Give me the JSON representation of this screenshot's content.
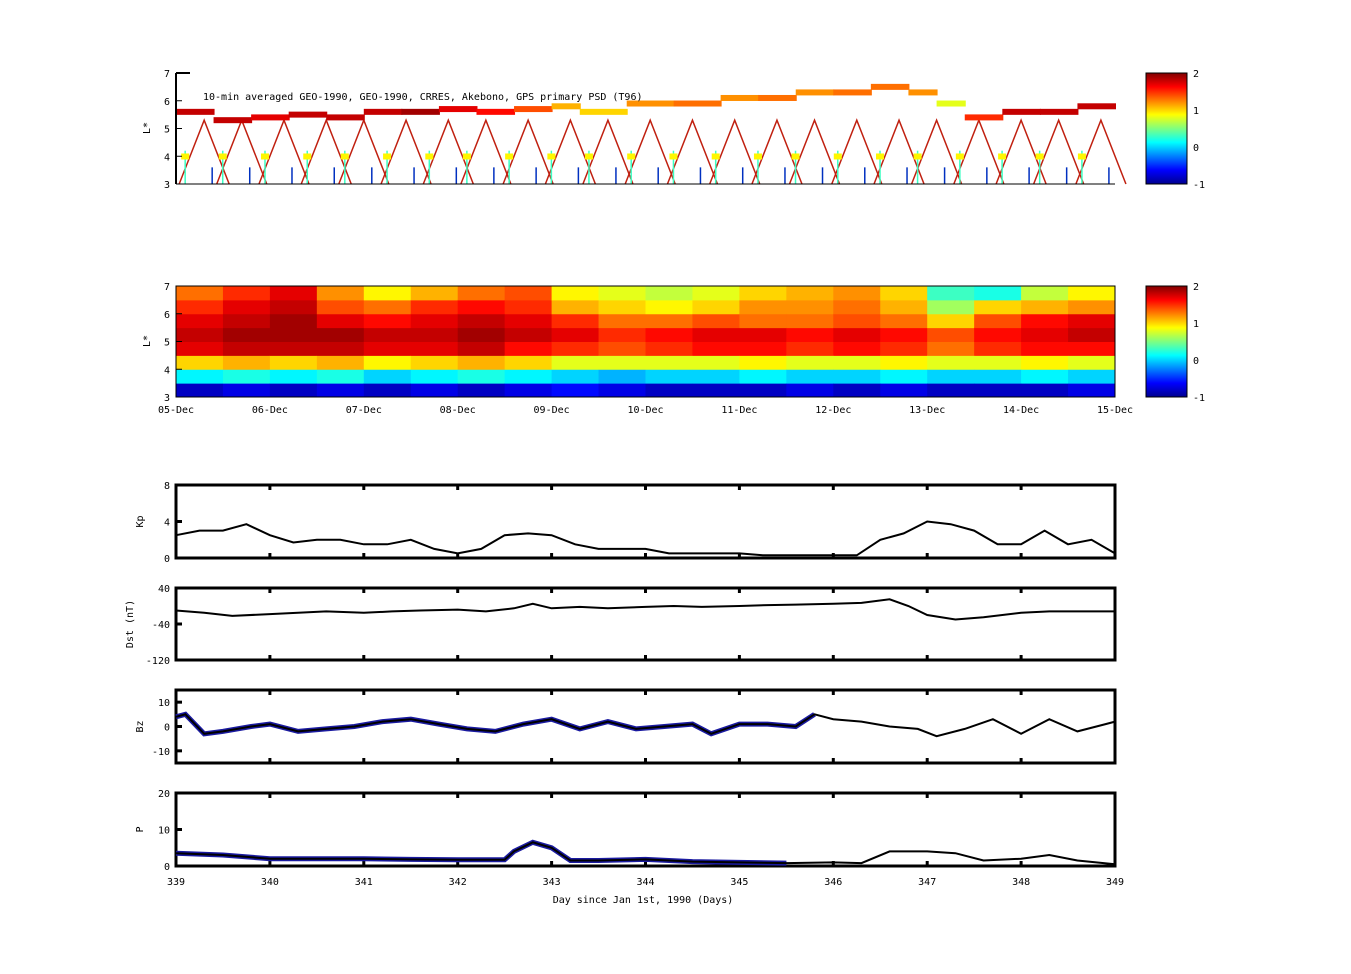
{
  "chart_data": [
    {
      "type": "heatmap",
      "name": "psd-observations",
      "title": "10-min averaged GEO-1990, GEO-1990, CRRES, Akebono, GPS  primary PSD (T96)",
      "ylabel": "L*",
      "ylim": [
        3,
        7
      ],
      "yticks": [
        "3",
        "4",
        "5",
        "6",
        "7"
      ],
      "xlim": [
        339,
        349
      ],
      "colorbar": {
        "ticks": [
          "-1",
          "0",
          "1",
          "2"
        ],
        "range": [
          -1,
          2
        ]
      },
      "geo_track": [
        [
          339,
          5.6,
          1.8
        ],
        [
          339.4,
          5.3,
          1.8
        ],
        [
          339.8,
          5.4,
          1.7
        ],
        [
          340.2,
          5.5,
          1.8
        ],
        [
          340.6,
          5.4,
          1.8
        ],
        [
          341,
          5.6,
          1.8
        ],
        [
          341.4,
          5.6,
          1.9
        ],
        [
          341.8,
          5.7,
          1.7
        ],
        [
          342.2,
          5.6,
          1.6
        ],
        [
          342.6,
          5.7,
          1.4
        ],
        [
          343,
          5.8,
          1.1
        ],
        [
          343.3,
          5.6,
          1.0
        ],
        [
          343.8,
          5.9,
          1.2
        ],
        [
          344.3,
          5.9,
          1.3
        ],
        [
          344.8,
          6.1,
          1.2
        ],
        [
          345.2,
          6.1,
          1.3
        ],
        [
          345.6,
          6.3,
          1.2
        ],
        [
          346,
          6.3,
          1.3
        ],
        [
          346.4,
          6.5,
          1.3
        ],
        [
          346.8,
          6.3,
          1.2
        ],
        [
          347.1,
          5.9,
          0.8
        ],
        [
          347.4,
          5.4,
          1.5
        ],
        [
          347.8,
          5.6,
          1.8
        ],
        [
          348.2,
          5.6,
          1.8
        ],
        [
          348.6,
          5.8,
          1.8
        ],
        [
          349,
          5.6,
          1.8
        ]
      ],
      "crres_arc_peaks": [
        339.3,
        339.7,
        340.15,
        340.6,
        341.0,
        341.45,
        341.9,
        342.3,
        342.75,
        343.2,
        343.6,
        344.05,
        344.5,
        344.95,
        345.4,
        345.8,
        346.25,
        346.7,
        347.1,
        347.55,
        348.0,
        348.4,
        348.85
      ]
    },
    {
      "type": "heatmap",
      "name": "psd-reanalysis",
      "ylabel": "L*",
      "ylim": [
        3,
        7
      ],
      "yticks": [
        "3",
        "4",
        "5",
        "6",
        "7"
      ],
      "xticks": [
        "05-Dec",
        "06-Dec",
        "07-Dec",
        "08-Dec",
        "09-Dec",
        "10-Dec",
        "11-Dec",
        "12-Dec",
        "13-Dec",
        "14-Dec",
        "15-Dec"
      ],
      "colorbar": {
        "ticks": [
          "-1",
          "0",
          "1",
          "2"
        ],
        "range": [
          -1,
          2
        ]
      },
      "l_bins": [
        3.25,
        3.75,
        4.25,
        4.75,
        5.25,
        5.75,
        6.25,
        6.75
      ],
      "day_bins": [
        339,
        339.5,
        340,
        340.5,
        341,
        341.5,
        342,
        342.5,
        343,
        343.5,
        344,
        344.5,
        345,
        345.5,
        346,
        346.5,
        347,
        347.5,
        348,
        348.5
      ],
      "values": [
        [
          -0.8,
          -0.7,
          -0.8,
          -0.7,
          -0.8,
          -0.7,
          -0.8,
          -0.7,
          -0.6,
          -0.7,
          -0.8,
          -0.8,
          -0.8,
          -0.7,
          -0.8,
          -0.7,
          -0.8,
          -0.8,
          -0.8,
          -0.7
        ],
        [
          0.1,
          0.2,
          0.1,
          0.2,
          0.0,
          0.1,
          0.2,
          0.1,
          0.0,
          -0.1,
          0.0,
          0.0,
          0.1,
          0.0,
          0.0,
          0.1,
          0.0,
          0.0,
          0.1,
          0.0
        ],
        [
          1.0,
          1.1,
          1.0,
          1.1,
          0.9,
          1.0,
          1.1,
          1.0,
          0.8,
          0.8,
          0.8,
          0.8,
          0.9,
          0.8,
          0.8,
          0.9,
          0.8,
          0.8,
          0.9,
          0.8
        ],
        [
          1.7,
          1.8,
          1.8,
          1.8,
          1.7,
          1.7,
          1.8,
          1.6,
          1.5,
          1.4,
          1.5,
          1.6,
          1.6,
          1.5,
          1.6,
          1.5,
          1.3,
          1.5,
          1.6,
          1.6
        ],
        [
          1.8,
          1.9,
          1.9,
          1.9,
          1.8,
          1.8,
          1.9,
          1.8,
          1.7,
          1.5,
          1.6,
          1.7,
          1.7,
          1.6,
          1.7,
          1.6,
          1.4,
          1.6,
          1.7,
          1.8
        ],
        [
          1.7,
          1.8,
          1.9,
          1.7,
          1.6,
          1.7,
          1.8,
          1.7,
          1.5,
          1.3,
          1.3,
          1.4,
          1.3,
          1.3,
          1.4,
          1.3,
          1.0,
          1.4,
          1.6,
          1.7
        ],
        [
          1.5,
          1.7,
          1.8,
          1.4,
          1.3,
          1.5,
          1.6,
          1.5,
          1.1,
          1.0,
          0.9,
          1.0,
          1.2,
          1.2,
          1.3,
          1.1,
          0.6,
          1.0,
          1.1,
          1.2
        ],
        [
          1.3,
          1.5,
          1.7,
          1.2,
          0.9,
          1.1,
          1.3,
          1.4,
          0.9,
          0.8,
          0.7,
          0.8,
          1.0,
          1.1,
          1.2,
          1.0,
          0.3,
          0.2,
          0.7,
          0.9
        ]
      ]
    },
    {
      "type": "line",
      "name": "kp",
      "ylabel": "Kp",
      "ylim": [
        0,
        8
      ],
      "yticks": [
        "0",
        "4",
        "8"
      ],
      "x": [
        339,
        339.25,
        339.5,
        339.75,
        340,
        340.25,
        340.5,
        340.75,
        341,
        341.25,
        341.5,
        341.75,
        342,
        342.25,
        342.5,
        342.75,
        343,
        343.25,
        343.5,
        343.75,
        344,
        344.25,
        344.5,
        344.75,
        345,
        345.25,
        345.5,
        345.75,
        346,
        346.25,
        346.5,
        346.75,
        347,
        347.25,
        347.5,
        347.75,
        348,
        348.25,
        348.5,
        348.75,
        349
      ],
      "y": [
        2.5,
        3,
        3,
        3.7,
        2.5,
        1.7,
        2,
        2,
        1.5,
        1.5,
        2,
        1,
        0.5,
        1,
        2.5,
        2.7,
        2.5,
        1.5,
        1,
        1,
        1,
        0.5,
        0.5,
        0.5,
        0.5,
        0.3,
        0.3,
        0.3,
        0.3,
        0.3,
        2,
        2.7,
        4,
        3.7,
        3,
        1.5,
        1.5,
        3,
        1.5,
        2,
        0.5
      ]
    },
    {
      "type": "line",
      "name": "dst",
      "ylabel": "Dst (nT)",
      "ylim": [
        -120,
        40
      ],
      "yticks": [
        "-120",
        "-40",
        "40"
      ],
      "x": [
        339,
        339.3,
        339.6,
        340,
        340.3,
        340.6,
        341,
        341.3,
        341.6,
        342,
        342.3,
        342.6,
        342.8,
        343,
        343.3,
        343.6,
        344,
        344.3,
        344.6,
        345,
        345.3,
        345.6,
        346,
        346.3,
        346.6,
        346.8,
        347,
        347.3,
        347.6,
        348,
        348.3,
        348.6,
        349
      ],
      "y": [
        -10,
        -15,
        -22,
        -18,
        -15,
        -12,
        -15,
        -12,
        -10,
        -8,
        -12,
        -5,
        5,
        -5,
        -2,
        -5,
        -2,
        0,
        -2,
        0,
        2,
        3,
        5,
        7,
        15,
        0,
        -20,
        -30,
        -25,
        -15,
        -12,
        -12,
        -12
      ]
    },
    {
      "type": "line",
      "name": "bz",
      "ylabel": "Bz",
      "ylim": [
        -15,
        15
      ],
      "yticks": [
        "-10",
        "0",
        "10"
      ],
      "x": [
        339,
        339.1,
        339.3,
        339.5,
        339.8,
        340,
        340.3,
        340.6,
        340.9,
        341.2,
        341.5,
        341.8,
        342.1,
        342.4,
        342.7,
        343,
        343.3,
        343.6,
        343.9,
        344.2,
        344.5,
        344.7,
        345,
        345.3,
        345.6,
        345.8,
        346,
        346.3,
        346.6,
        346.9,
        347.1,
        347.4,
        347.7,
        348,
        348.3,
        348.6,
        348.9,
        349
      ],
      "y": [
        4,
        5,
        -3,
        -2,
        0,
        1,
        -2,
        -1,
        0,
        2,
        3,
        1,
        -1,
        -2,
        1,
        3,
        -1,
        2,
        -1,
        0,
        1,
        -3,
        1,
        1,
        0,
        5,
        3,
        2,
        0,
        -1,
        -4,
        -1,
        3,
        -3,
        3,
        -2,
        1,
        2
      ],
      "observed_until": 345.9
    },
    {
      "type": "line",
      "name": "pressure",
      "ylabel": "P",
      "ylim": [
        0,
        20
      ],
      "yticks": [
        "0",
        "10",
        "20"
      ],
      "x": [
        339,
        339.5,
        340,
        340.5,
        341,
        341.5,
        342,
        342.5,
        342.6,
        342.8,
        343,
        343.2,
        343.5,
        344,
        344.5,
        345,
        345.5,
        346,
        346.3,
        346.6,
        347,
        347.3,
        347.6,
        348,
        348.3,
        348.6,
        349
      ],
      "y": [
        3.5,
        3,
        2,
        2,
        2,
        1.8,
        1.7,
        1.7,
        4,
        6.5,
        5,
        1.5,
        1.5,
        1.8,
        1.2,
        1.0,
        0.8,
        1.0,
        0.8,
        4,
        4,
        3.5,
        1.5,
        2,
        3,
        1.5,
        0.5
      ],
      "observed_until": 345.9,
      "xticks": [
        "339",
        "340",
        "341",
        "342",
        "343",
        "344",
        "345",
        "346",
        "347",
        "348",
        "349"
      ],
      "xlabel": "Day since Jan 1st, 1990 (Days)"
    }
  ],
  "colors": {
    "line": "#000000",
    "observed": "#1a1aa0"
  }
}
